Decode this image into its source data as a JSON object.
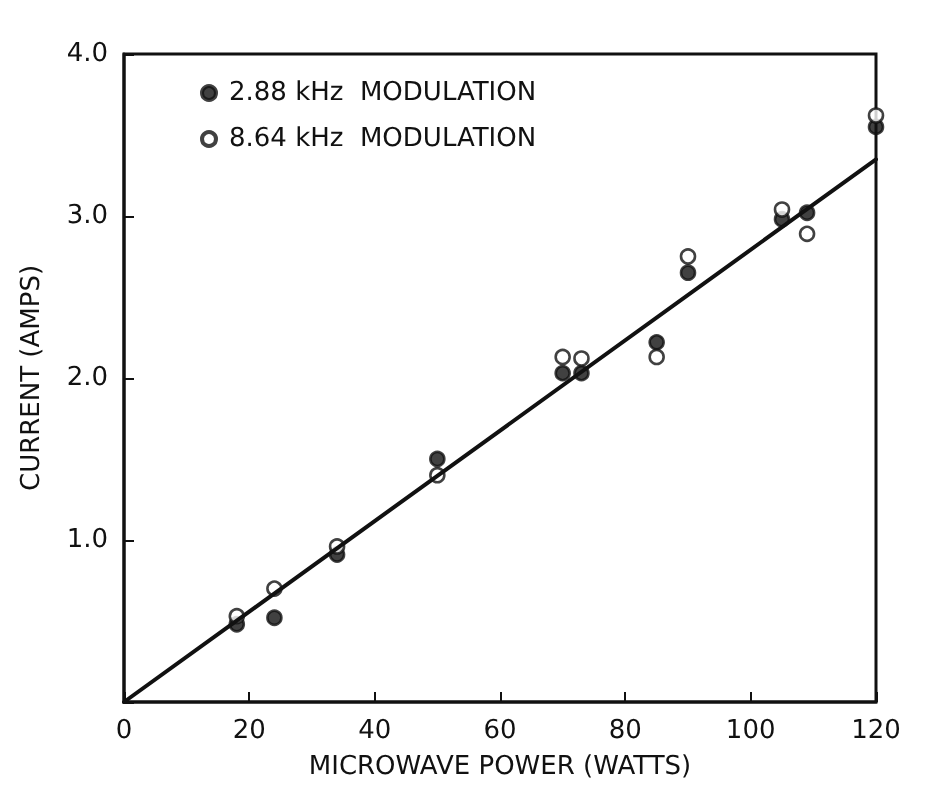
{
  "chart_data": {
    "type": "scatter",
    "xlabel": "MICROWAVE POWER (WATTS)",
    "ylabel": "CURRENT (AMPS)",
    "xlim": [
      0,
      120
    ],
    "xticks": [
      0,
      20,
      40,
      60,
      80,
      100,
      120
    ],
    "ylim": [
      0,
      4.0
    ],
    "yticks": [
      {
        "value": 0,
        "label": null
      },
      {
        "value": 1,
        "label": "1.0"
      },
      {
        "value": 2,
        "label": "2.0"
      },
      {
        "value": 3,
        "label": "3.0"
      },
      {
        "value": 4,
        "label": "4.0"
      }
    ],
    "grid": false,
    "legend": "top left",
    "marker": "circle",
    "series": [
      {
        "name": "2.88 kHz  MODULATION",
        "color": "#111111",
        "x": [
          18,
          24,
          34,
          50,
          70,
          73,
          85,
          90,
          105,
          109,
          120
        ],
        "values": [
          0.48,
          0.52,
          0.91,
          1.5,
          2.03,
          2.03,
          2.22,
          2.65,
          2.98,
          3.02,
          3.55
        ]
      },
      {
        "name": "8.64 kHz  MODULATION",
        "color": "#ffffff",
        "x": [
          18,
          24,
          34,
          50,
          70,
          73,
          85,
          90,
          105,
          109,
          120
        ],
        "values": [
          0.53,
          0.7,
          0.96,
          1.4,
          2.13,
          2.12,
          2.13,
          2.75,
          3.04,
          2.89,
          3.62
        ]
      },
      {
        "type": "line",
        "color": "#111111",
        "marker": "none",
        "line_style": "solid",
        "x": [
          0,
          120
        ],
        "values": [
          0,
          3.35
        ]
      }
    ]
  }
}
